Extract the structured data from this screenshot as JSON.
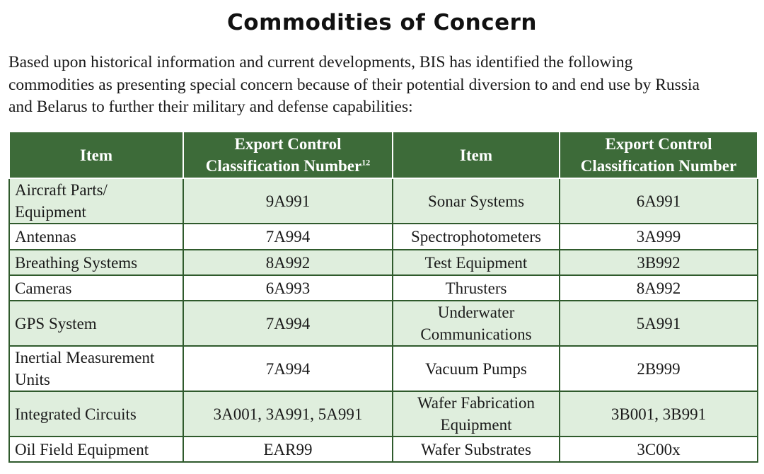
{
  "title": "Commodities of Concern",
  "intro": "Based upon historical information and current developments, BIS has identified the following commodities as presenting special concern because of their potential diversion to and end use by Russia and Belarus to further their military and defense capabilities:",
  "colors": {
    "header_bg": "#3d6b39",
    "shaded_row": "#dfeedd",
    "border": "#2f5a2c"
  },
  "table": {
    "headers": {
      "item_1": "Item",
      "eccn_1": "Export Control Classification Number",
      "eccn_1_footnote": "12",
      "item_2": "Item",
      "eccn_2": "Export Control Classification Number"
    },
    "rows": [
      {
        "item1": "Aircraft Parts/ Equipment",
        "eccn1": "9A991",
        "item2": "Sonar Systems",
        "eccn2": "6A991"
      },
      {
        "item1": "Antennas",
        "eccn1": "7A994",
        "item2": "Spectrophotometers",
        "eccn2": "3A999"
      },
      {
        "item1": "Breathing Systems",
        "eccn1": "8A992",
        "item2": "Test Equipment",
        "eccn2": "3B992"
      },
      {
        "item1": "Cameras",
        "eccn1": "6A993",
        "item2": "Thrusters",
        "eccn2": "8A992"
      },
      {
        "item1": "GPS System",
        "eccn1": "7A994",
        "item2": "Underwater Communications",
        "eccn2": "5A991"
      },
      {
        "item1": "Inertial Measurement Units",
        "eccn1": "7A994",
        "item2": "Vacuum Pumps",
        "eccn2": "2B999"
      },
      {
        "item1": "Integrated Circuits",
        "eccn1": "3A001, 3A991, 5A991",
        "item2": "Wafer Fabrication Equipment",
        "eccn2": "3B001, 3B991"
      },
      {
        "item1": "Oil Field Equipment",
        "eccn1": "EAR99",
        "item2": "Wafer Substrates",
        "eccn2": "3C00x"
      }
    ]
  }
}
